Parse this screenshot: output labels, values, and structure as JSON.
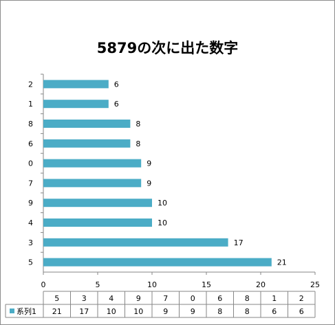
{
  "chart_data": {
    "type": "bar",
    "orientation": "horizontal",
    "title": "5879の次に出た数字",
    "categories": [
      "5",
      "3",
      "4",
      "9",
      "7",
      "0",
      "6",
      "8",
      "1",
      "2"
    ],
    "series": [
      {
        "name": "系列1",
        "values": [
          21,
          17,
          10,
          10,
          9,
          9,
          8,
          8,
          6,
          6
        ],
        "color": "#4bacc6"
      }
    ],
    "xlim": [
      0,
      25
    ],
    "xticks": [
      "0",
      "5",
      "10",
      "15",
      "20",
      "25"
    ],
    "grid": false,
    "legend": "bottom-left-data-table",
    "data_table": true
  }
}
